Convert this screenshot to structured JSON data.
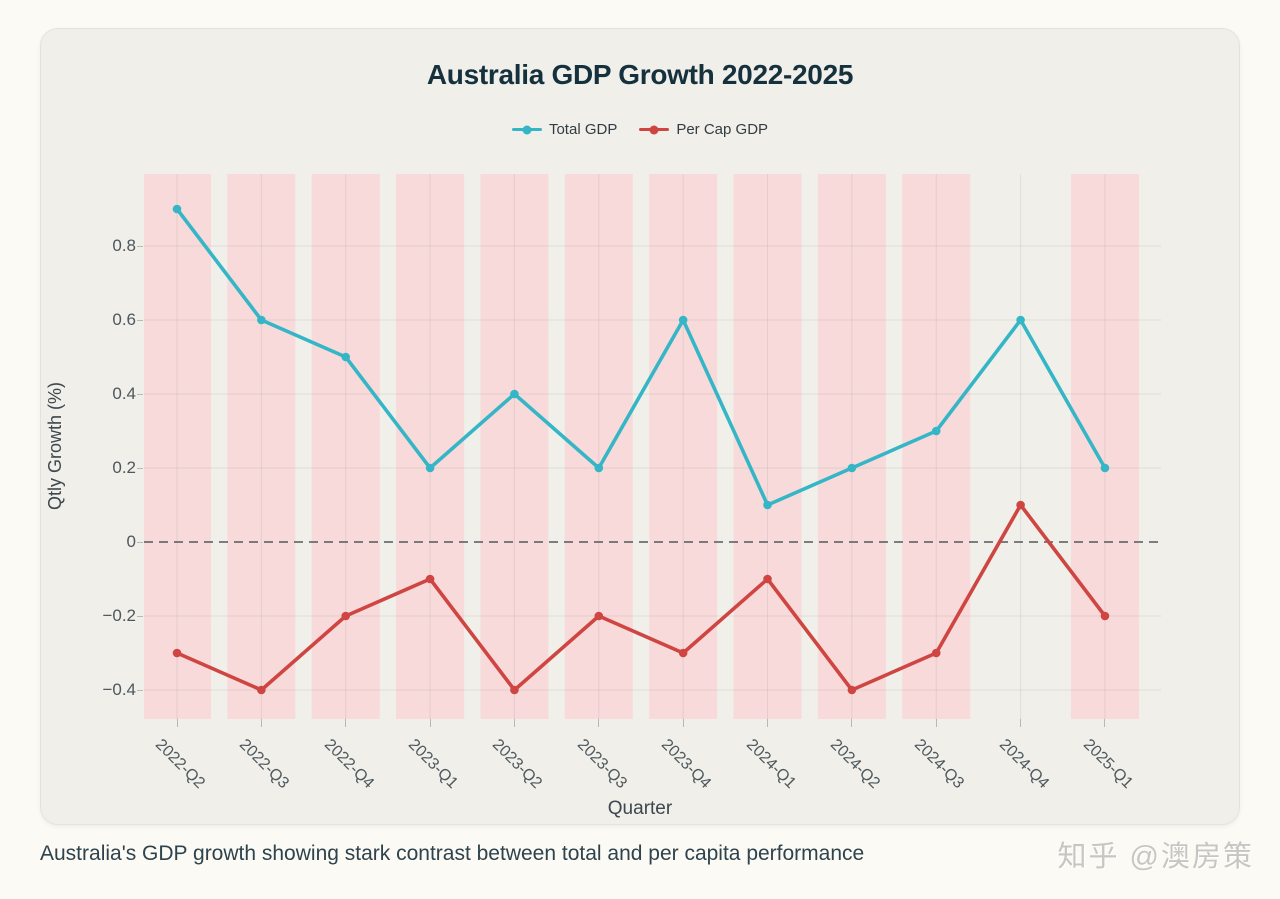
{
  "page": {
    "background_color": "#fbfaf4",
    "card_background_color": "#f0efe9"
  },
  "caption": "Australia's GDP growth showing stark contrast between total and per capita performance",
  "watermark": {
    "text": "知乎 @澳房策",
    "color": "#c7c6c2"
  },
  "chart_data": {
    "type": "line",
    "title": "Australia GDP Growth 2022-2025",
    "xlabel": "Quarter",
    "ylabel": "Qtly Growth (%)",
    "categories": [
      "2022-Q2",
      "2022-Q3",
      "2022-Q4",
      "2023-Q1",
      "2023-Q2",
      "2023-Q3",
      "2023-Q4",
      "2024-Q1",
      "2024-Q2",
      "2024-Q3",
      "2024-Q4",
      "2025-Q1"
    ],
    "series": [
      {
        "name": "Total GDP",
        "color": "#35b6c7",
        "values": [
          0.9,
          0.6,
          0.5,
          0.2,
          0.4,
          0.2,
          0.6,
          0.1,
          0.2,
          0.3,
          0.6,
          0.2
        ]
      },
      {
        "name": "Per Cap GDP",
        "color": "#cf4541",
        "values": [
          -0.3,
          -0.4,
          -0.2,
          -0.1,
          -0.4,
          -0.2,
          -0.3,
          -0.1,
          -0.4,
          -0.3,
          0.1,
          -0.2
        ]
      }
    ],
    "y_ticks": [
      0.8,
      0.6,
      0.4,
      0.2,
      0,
      -0.2,
      -0.4
    ],
    "y_tick_labels": [
      "0.8",
      "0.6",
      "0.4",
      "0.2",
      "0",
      "−0.2",
      "−0.4"
    ],
    "ylim": [
      -0.48,
      0.99
    ],
    "grid": true,
    "legend_position": "top-center",
    "zero_line": {
      "style": "dashed",
      "color": "#54585b"
    },
    "highlight_bands": {
      "color": "#f8dada",
      "category_indexes": [
        0,
        1,
        2,
        3,
        4,
        5,
        6,
        7,
        8,
        9,
        11
      ]
    },
    "x_tick_angle_deg": 45
  }
}
